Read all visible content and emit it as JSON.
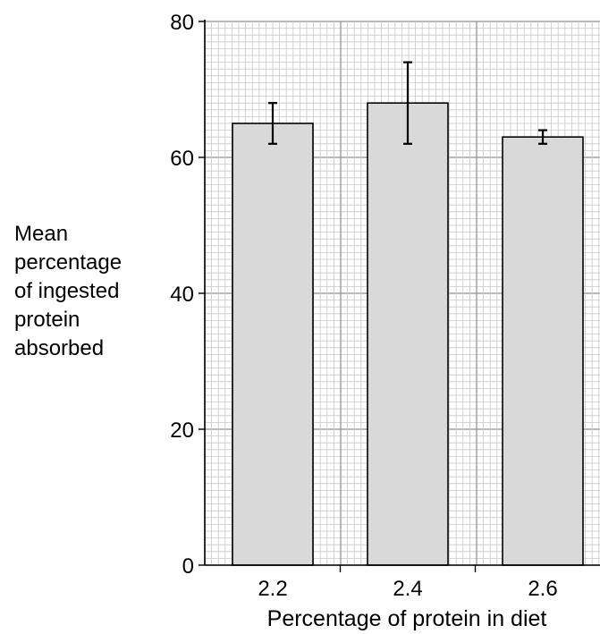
{
  "chart_data": {
    "type": "bar",
    "title": "",
    "xlabel": "Percentage of protein in diet",
    "ylabel_lines": [
      "Mean",
      "percentage",
      "of ingested",
      "protein",
      "absorbed"
    ],
    "categories": [
      "2.2",
      "2.4",
      "2.6"
    ],
    "values": [
      65,
      68,
      63
    ],
    "error_low": [
      62,
      62,
      62
    ],
    "error_high": [
      68,
      74,
      64
    ],
    "ylim": [
      0,
      80
    ],
    "yticks": [
      0,
      20,
      40,
      60,
      80
    ],
    "grid": true,
    "colors": {
      "bar_fill": "#d9d9d9",
      "bar_stroke": "#000000",
      "grid_minor": "#c8c8c8",
      "grid_major": "#8c8c8c"
    }
  }
}
